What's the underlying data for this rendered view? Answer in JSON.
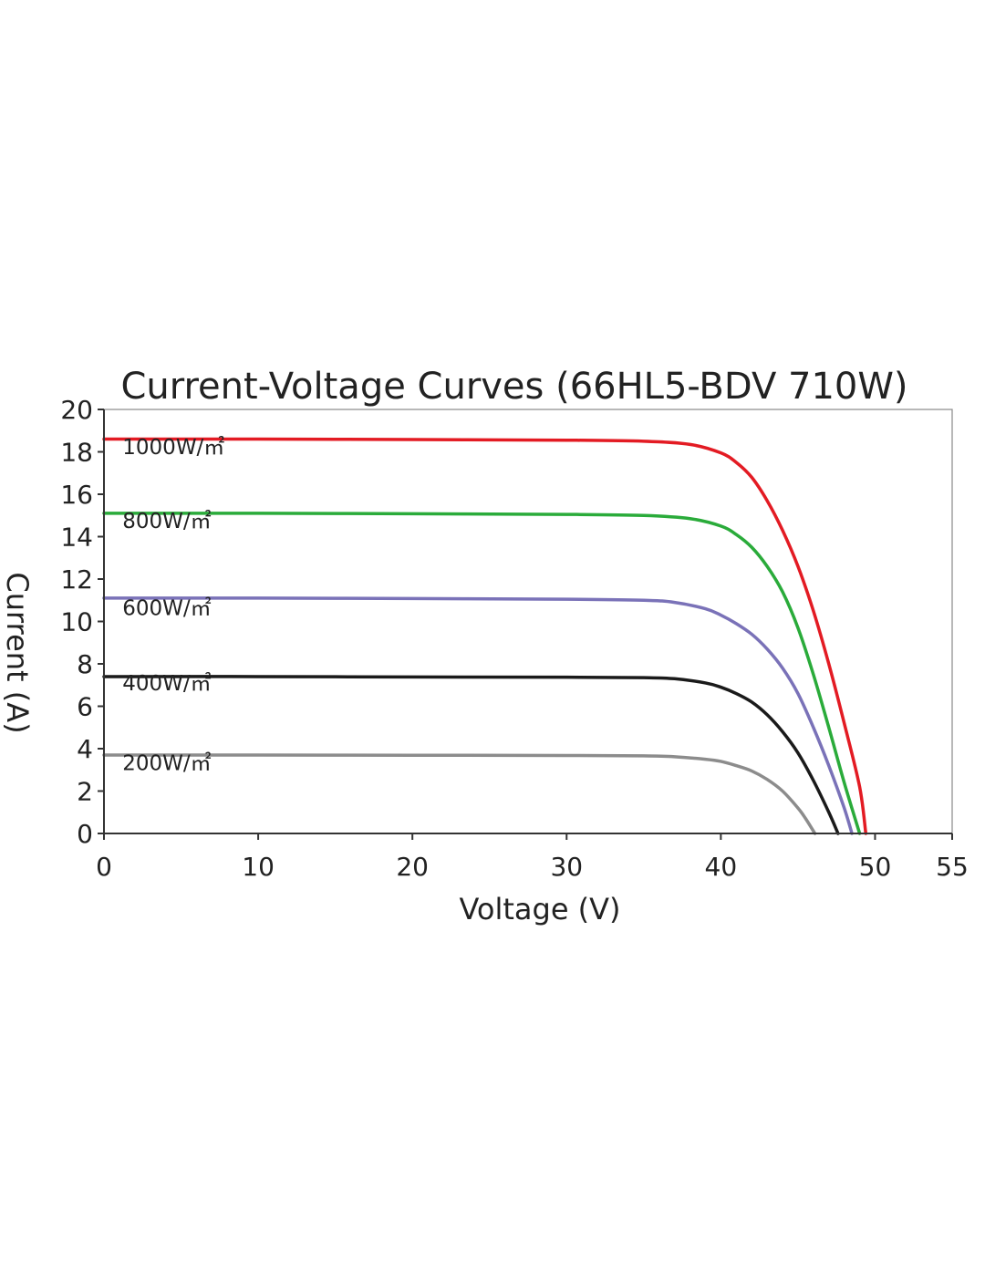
{
  "chart_data": {
    "type": "line",
    "title": "Current-Voltage Curves (66HL5-BDV 710W)",
    "xlabel": "Voltage (V)",
    "ylabel": "Current (A)",
    "xlim": [
      0,
      55
    ],
    "ylim": [
      0,
      20
    ],
    "xticks": [
      0,
      10,
      20,
      30,
      40,
      50,
      55
    ],
    "yticks": [
      0,
      2,
      4,
      6,
      8,
      10,
      12,
      14,
      16,
      18,
      20
    ],
    "grid": false,
    "legend": "inline labels at left",
    "series": [
      {
        "name": "1000W/㎡",
        "color": "#e31b23",
        "x": [
          0,
          10,
          20,
          30,
          35,
          38,
          40,
          41,
          42,
          43,
          44,
          45,
          46,
          47,
          48,
          49,
          49.4
        ],
        "y": [
          18.6,
          18.6,
          18.58,
          18.55,
          18.5,
          18.35,
          17.95,
          17.5,
          16.8,
          15.7,
          14.3,
          12.6,
          10.5,
          8.0,
          5.2,
          2.2,
          0
        ]
      },
      {
        "name": "800W/㎡",
        "color": "#2aab3a",
        "x": [
          0,
          10,
          20,
          30,
          35,
          38,
          40,
          41,
          42,
          43,
          44,
          45,
          46,
          47,
          48,
          49.0
        ],
        "y": [
          15.1,
          15.1,
          15.08,
          15.05,
          15.0,
          14.85,
          14.5,
          14.1,
          13.5,
          12.6,
          11.4,
          9.7,
          7.5,
          5.0,
          2.4,
          0
        ]
      },
      {
        "name": "600W/㎡",
        "color": "#7a72b8",
        "x": [
          0,
          10,
          20,
          30,
          35,
          37,
          39,
          40,
          41,
          42,
          43,
          44,
          45,
          46,
          47,
          48,
          48.5
        ],
        "y": [
          11.1,
          11.1,
          11.08,
          11.05,
          11.0,
          10.9,
          10.6,
          10.3,
          9.9,
          9.4,
          8.7,
          7.8,
          6.6,
          5.0,
          3.2,
          1.2,
          0
        ]
      },
      {
        "name": "400W/㎡",
        "color": "#1a1a1a",
        "x": [
          0,
          10,
          20,
          30,
          35,
          37,
          39,
          40,
          41,
          42,
          43,
          44,
          45,
          46,
          47,
          47.6
        ],
        "y": [
          7.4,
          7.4,
          7.38,
          7.37,
          7.35,
          7.3,
          7.1,
          6.9,
          6.6,
          6.2,
          5.6,
          4.8,
          3.8,
          2.5,
          1.0,
          0
        ]
      },
      {
        "name": "200W/㎡",
        "color": "#8c8c8c",
        "x": [
          0,
          10,
          20,
          30,
          35,
          37,
          39,
          40,
          41,
          42,
          43,
          44,
          45,
          45.5,
          46.1
        ],
        "y": [
          3.7,
          3.7,
          3.69,
          3.68,
          3.66,
          3.62,
          3.5,
          3.4,
          3.2,
          2.95,
          2.55,
          2.0,
          1.2,
          0.7,
          0
        ]
      }
    ],
    "labels": [
      {
        "text": "1000W/㎡",
        "x": 1.2,
        "y": 17.9
      },
      {
        "text": "800W/㎡",
        "x": 1.2,
        "y": 14.4
      },
      {
        "text": "600W/㎡",
        "x": 1.2,
        "y": 10.3
      },
      {
        "text": "400W/㎡",
        "x": 1.2,
        "y": 6.75
      },
      {
        "text": "200W/㎡",
        "x": 1.2,
        "y": 3.0
      }
    ]
  }
}
